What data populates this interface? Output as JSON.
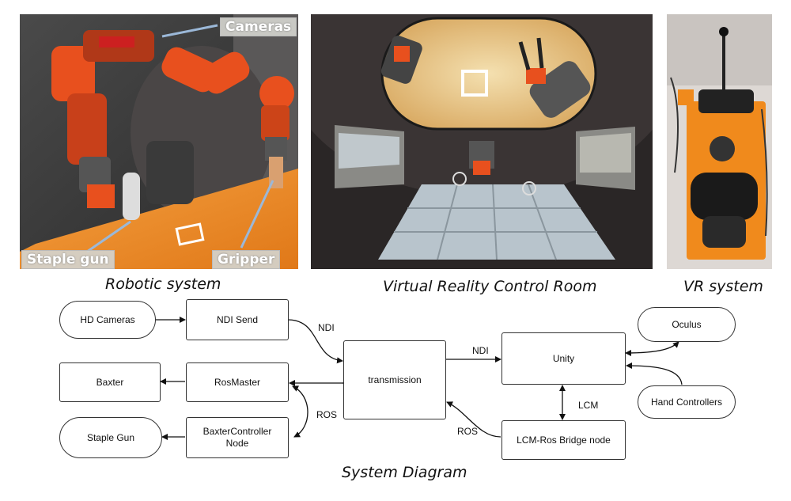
{
  "photos": {
    "robotic": {
      "caption": "Robotic system",
      "labels": {
        "cameras": "Cameras",
        "staple_gun": "Staple gun",
        "gripper": "Gripper"
      }
    },
    "vr_room": {
      "caption": "Virtual Reality Control Room"
    },
    "vr_system": {
      "caption": "VR system"
    }
  },
  "diagram": {
    "title": "System Diagram",
    "nodes": {
      "hd_cameras": "HD Cameras",
      "ndi_send": "NDI Send",
      "baxter": "Baxter",
      "rosmaster": "RosMaster",
      "staple_gun": "Staple Gun",
      "baxter_controller_line1": "BaxterController",
      "baxter_controller_line2": "Node",
      "transmission": "transmission",
      "unity": "Unity",
      "lcm_ros_bridge": "LCM-Ros Bridge node",
      "oculus": "Oculus",
      "hand_controllers": "Hand Controllers"
    },
    "edge_labels": {
      "ndi_left": "NDI",
      "ndi_right": "NDI",
      "ros_left": "ROS",
      "ros_right": "ROS",
      "lcm": "LCM"
    }
  },
  "colors": {
    "robot_orange": "#e8501e",
    "table_orange": "#f08a1c",
    "vr_backdrop": "#3a3434",
    "vr_sky": "#e8c88a"
  }
}
